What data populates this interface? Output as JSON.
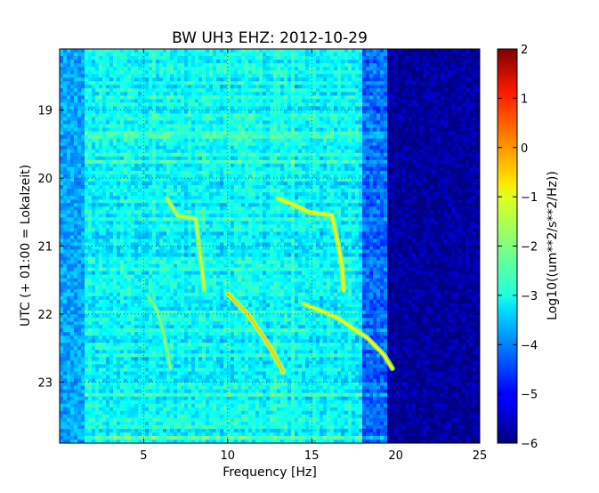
{
  "chart_data": {
    "type": "heatmap",
    "title": "BW UH3 EHZ: 2012-10-29",
    "xlabel": "Frequency [Hz]",
    "ylabel": "UTC (+ 01:00 = Lokalzeit)",
    "xlim": [
      0,
      25
    ],
    "ylim": [
      18.1,
      23.9
    ],
    "y_inverted": true,
    "x_ticks": [
      5,
      10,
      15,
      20,
      25
    ],
    "x_tick_labels": [
      "5",
      "10",
      "15",
      "20",
      "25"
    ],
    "y_ticks": [
      19,
      20,
      21,
      22,
      23
    ],
    "y_tick_labels": [
      "19",
      "20",
      "21",
      "22",
      "23"
    ],
    "grid": true,
    "colormap": "jet",
    "colorbar": {
      "label": "Log10((um**2/s**2/Hz))",
      "range": [
        -6,
        2
      ],
      "ticks": [
        2,
        1,
        0,
        -1,
        -2,
        -3,
        -4,
        -5,
        -6
      ],
      "tick_labels": [
        "2",
        "1",
        "0",
        "−1",
        "−2",
        "−3",
        "−4",
        "−5",
        "−6"
      ]
    },
    "background_noise": {
      "low_freq_level": -3.3,
      "mid_freq_level": -3.0,
      "high_freq_cutoff_hz": 19.5,
      "above_cutoff_level": -5.8
    },
    "tracks": [
      {
        "points": [
          [
            6.4,
            20.3
          ],
          [
            7.0,
            20.55
          ],
          [
            8.1,
            20.6
          ],
          [
            8.3,
            21.0
          ],
          [
            8.5,
            21.4
          ],
          [
            8.6,
            21.65
          ]
        ],
        "level": -1.3
      },
      {
        "points": [
          [
            13.0,
            20.3
          ],
          [
            14.0,
            20.4
          ],
          [
            14.8,
            20.5
          ],
          [
            16.2,
            20.55
          ],
          [
            16.6,
            21.0
          ],
          [
            16.8,
            21.3
          ],
          [
            16.9,
            21.65
          ]
        ],
        "level": -0.9
      },
      {
        "points": [
          [
            10.0,
            21.7
          ],
          [
            11.2,
            22.0
          ],
          [
            12.3,
            22.4
          ],
          [
            13.0,
            22.7
          ],
          [
            13.3,
            22.85
          ]
        ],
        "level": -0.6
      },
      {
        "points": [
          [
            14.5,
            21.85
          ],
          [
            16.5,
            22.05
          ],
          [
            18.3,
            22.35
          ],
          [
            19.3,
            22.6
          ],
          [
            19.8,
            22.8
          ]
        ],
        "level": -1.0
      },
      {
        "points": [
          [
            5.3,
            21.75
          ],
          [
            5.8,
            21.95
          ],
          [
            6.2,
            22.3
          ],
          [
            6.5,
            22.7
          ],
          [
            6.6,
            22.8
          ]
        ],
        "level": -1.8
      }
    ]
  }
}
